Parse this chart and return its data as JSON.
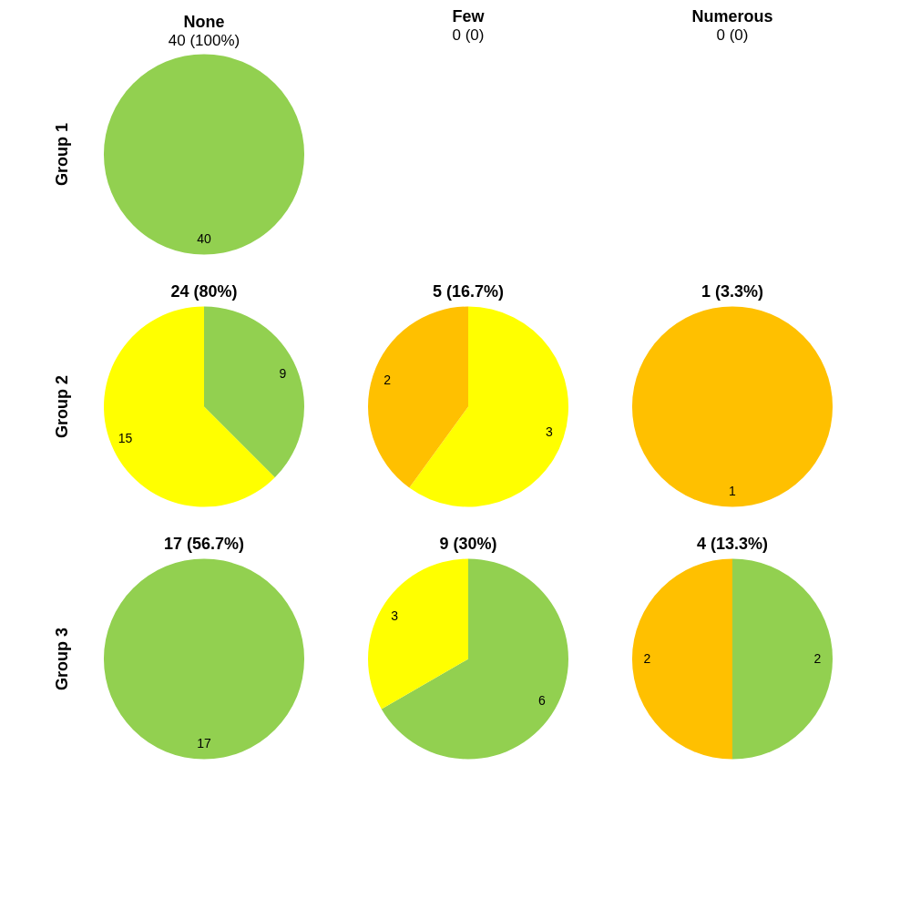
{
  "chart_data": [
    {
      "type": "pie",
      "title": "None",
      "subtitle": "40 (100%)",
      "ylabel": "Group 1",
      "categories": [
        null
      ],
      "values": [
        40
      ],
      "colors": [
        "#92d050"
      ],
      "data_labels": true
    },
    {
      "type": "other",
      "title": "Few",
      "subtitle": "0 (0)"
    },
    {
      "type": "other",
      "title": "Numerous",
      "subtitle": "0 (0)"
    },
    {
      "type": "pie",
      "title": "24 (80%)",
      "ylabel": "Group 2",
      "categories": [
        null,
        null
      ],
      "values": [
        9,
        15
      ],
      "colors": [
        "#92d050",
        "#ffff00"
      ],
      "data_labels": true
    },
    {
      "type": "pie",
      "title": "5 (16.7%)",
      "categories": [
        null,
        null
      ],
      "values": [
        3,
        2
      ],
      "colors": [
        "#ffff00",
        "#ffc000"
      ],
      "data_labels": true
    },
    {
      "type": "pie",
      "title": "1 (3.3%)",
      "categories": [
        null
      ],
      "values": [
        1
      ],
      "colors": [
        "#ffc000"
      ],
      "data_labels": true
    },
    {
      "type": "pie",
      "title": "17 (56.7%)",
      "ylabel": "Group 3",
      "categories": [
        null
      ],
      "values": [
        17
      ],
      "colors": [
        "#92d050"
      ],
      "data_labels": true
    },
    {
      "type": "pie",
      "title": "9 (30%)",
      "categories": [
        null,
        null
      ],
      "values": [
        6,
        3
      ],
      "colors": [
        "#92d050",
        "#ffff00"
      ],
      "data_labels": true
    },
    {
      "type": "pie",
      "title": "4 (13.3%)",
      "categories": [
        null,
        null
      ],
      "values": [
        2,
        2
      ],
      "colors": [
        "#92d050",
        "#ffc000"
      ],
      "data_labels": true
    }
  ]
}
